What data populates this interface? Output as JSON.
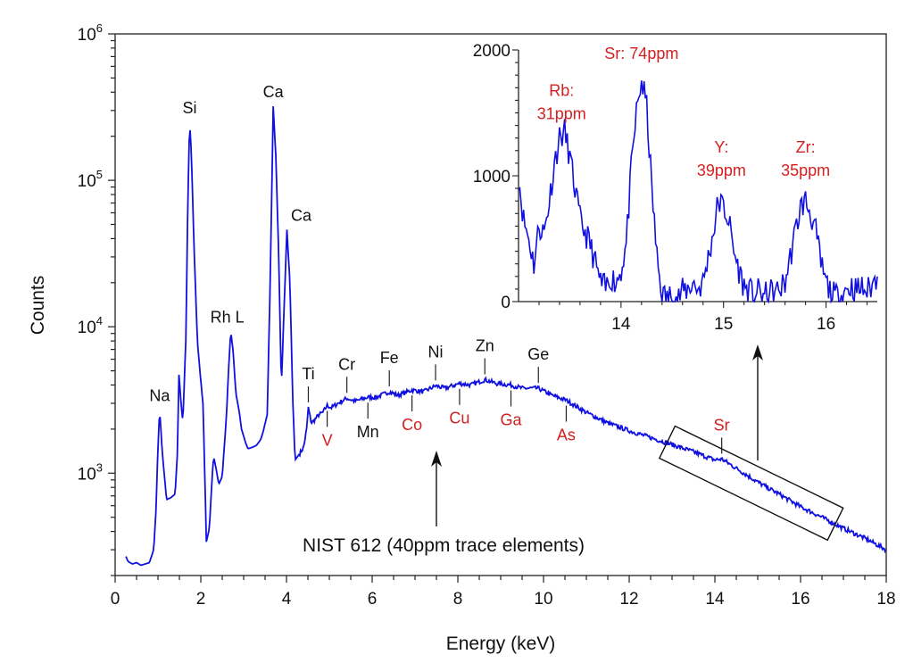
{
  "chart_data": [
    {
      "type": "line",
      "xlabel": "Energy (keV)",
      "ylabel": "Counts",
      "xlim": [
        0,
        18
      ],
      "ylim": [
        200,
        1000000
      ],
      "yscale": "log",
      "xticks": [
        0,
        2,
        4,
        6,
        8,
        10,
        12,
        14,
        16,
        18
      ],
      "yticks": [
        1000,
        10000,
        100000,
        1000000
      ],
      "line_color": "#1010e0",
      "annotation": "NIST 612 (40ppm trace elements)",
      "series": [
        {
          "x": [
            0.25,
            0.3,
            0.4,
            0.5,
            0.6,
            0.7,
            0.8,
            0.9,
            0.95,
            1.0,
            1.04,
            1.1,
            1.2,
            1.3,
            1.4,
            1.45,
            1.49,
            1.54,
            1.58,
            1.65,
            1.7,
            1.74,
            1.78,
            1.85,
            1.92,
            1.98,
            2.05,
            2.1,
            2.13,
            2.2,
            2.27,
            2.3,
            2.35,
            2.42,
            2.5,
            2.6,
            2.66,
            2.7,
            2.75,
            2.82,
            2.9,
            2.95,
            3.05,
            3.1,
            3.2,
            3.3,
            3.4,
            3.45,
            3.55,
            3.62,
            3.69,
            3.75,
            3.82,
            3.88,
            3.95,
            4.01,
            4.08,
            4.15,
            4.2,
            4.3,
            4.4,
            4.47,
            4.51,
            4.58,
            4.65,
            4.75,
            4.85,
            4.95,
            5.05,
            5.2,
            5.41,
            5.6,
            5.9,
            6.1,
            6.4,
            6.6,
            6.93,
            7.2,
            7.48,
            7.7,
            8.04,
            8.3,
            8.63,
            8.9,
            9.24,
            9.5,
            9.88,
            10.2,
            10.53,
            11,
            11.5,
            12,
            12.5,
            13,
            13.5,
            14,
            14.16,
            14.5,
            15,
            15.5,
            16,
            16.5,
            17,
            17.5,
            18
          ],
          "y": [
            270,
            250,
            240,
            245,
            235,
            240,
            245,
            300,
            530,
            1500,
            2700,
            1400,
            660,
            680,
            720,
            1300,
            4700,
            3000,
            2200,
            8000,
            80000,
            250000,
            150000,
            30000,
            8000,
            4950,
            3000,
            800,
            340,
            420,
            1000,
            1300,
            1100,
            840,
            950,
            2500,
            6000,
            9300,
            7000,
            3500,
            2600,
            2000,
            1600,
            1470,
            1500,
            1550,
            1700,
            1900,
            2500,
            20000,
            320000,
            150000,
            30000,
            3800,
            15000,
            46000,
            20000,
            3000,
            1230,
            1350,
            1500,
            2000,
            2800,
            2200,
            2300,
            2500,
            2600,
            2900,
            2800,
            3000,
            3250,
            3100,
            3300,
            3300,
            3600,
            3400,
            3700,
            3600,
            3950,
            3800,
            4100,
            4000,
            4350,
            4100,
            4000,
            3800,
            3800,
            3400,
            3150,
            2600,
            2200,
            1950,
            1750,
            1570,
            1400,
            1230,
            1250,
            1080,
            870,
            720,
            590,
            500,
            420,
            360,
            300
          ]
        }
      ],
      "peak_labels": [
        {
          "label": "Na",
          "energy": 1.04,
          "side": "above",
          "tick": false,
          "color": "#111111"
        },
        {
          "label": "Si",
          "energy": 1.74,
          "side": "above",
          "tick": false,
          "color": "#111111"
        },
        {
          "label": "Rh L",
          "energy": 2.7,
          "side": "above",
          "tick": false,
          "color": "#111111"
        },
        {
          "label": "Ca",
          "energy": 3.69,
          "side": "above",
          "tick": false,
          "color": "#111111"
        },
        {
          "label": "Ca",
          "energy": 4.01,
          "side": "above",
          "tick": false,
          "color": "#111111"
        },
        {
          "label": "Ti",
          "energy": 4.51,
          "side": "above",
          "tick": true,
          "color": "#111111"
        },
        {
          "label": "V",
          "energy": 4.95,
          "side": "below",
          "tick": true,
          "color": "#d42020"
        },
        {
          "label": "Cr",
          "energy": 5.41,
          "side": "above",
          "tick": true,
          "color": "#111111"
        },
        {
          "label": "Mn",
          "energy": 5.9,
          "side": "below",
          "tick": true,
          "color": "#111111"
        },
        {
          "label": "Fe",
          "energy": 6.4,
          "side": "above",
          "tick": true,
          "color": "#111111"
        },
        {
          "label": "Co",
          "energy": 6.93,
          "side": "below",
          "tick": true,
          "color": "#d42020"
        },
        {
          "label": "Ni",
          "energy": 7.48,
          "side": "above",
          "tick": true,
          "color": "#111111"
        },
        {
          "label": "Cu",
          "energy": 8.04,
          "side": "below",
          "tick": true,
          "color": "#d42020"
        },
        {
          "label": "Zn",
          "energy": 8.63,
          "side": "above",
          "tick": true,
          "color": "#111111"
        },
        {
          "label": "Ga",
          "energy": 9.24,
          "side": "below",
          "tick": true,
          "color": "#d42020"
        },
        {
          "label": "Ge",
          "energy": 9.88,
          "side": "above",
          "tick": true,
          "color": "#111111"
        },
        {
          "label": "As",
          "energy": 10.53,
          "side": "below",
          "tick": true,
          "color": "#d42020"
        },
        {
          "label": "Sr",
          "energy": 14.16,
          "side": "above",
          "tick": true,
          "color": "#d42020"
        }
      ],
      "zoom_box_energy_range": [
        13,
        16.7
      ]
    },
    {
      "type": "line",
      "xlabel": "",
      "ylabel": "",
      "xlim": [
        13,
        16.5
      ],
      "ylim": [
        0,
        2000
      ],
      "xticks": [
        14,
        15,
        16
      ],
      "yticks": [
        0,
        1000,
        2000
      ],
      "line_color": "#1010e0",
      "series": [
        {
          "x": [
            13.0,
            13.05,
            13.1,
            13.15,
            13.2,
            13.25,
            13.3,
            13.35,
            13.4,
            13.45,
            13.5,
            13.55,
            13.6,
            13.65,
            13.7,
            13.75,
            13.8,
            13.85,
            13.9,
            13.95,
            14.0,
            14.05,
            14.1,
            14.15,
            14.2,
            14.25,
            14.3,
            14.35,
            14.4,
            14.45,
            14.5,
            14.55,
            14.6,
            14.65,
            14.7,
            14.75,
            14.8,
            14.85,
            14.9,
            14.95,
            15.0,
            15.05,
            15.1,
            15.15,
            15.2,
            15.25,
            15.3,
            15.35,
            15.4,
            15.45,
            15.5,
            15.55,
            15.6,
            15.65,
            15.7,
            15.75,
            15.8,
            15.85,
            15.9,
            15.95,
            16.0,
            16.05,
            16.1,
            16.15,
            16.2,
            16.25,
            16.3,
            16.35,
            16.4,
            16.45,
            16.5
          ],
          "y": [
            1000,
            650,
            500,
            300,
            600,
            550,
            800,
            1100,
            1300,
            1350,
            1150,
            900,
            650,
            550,
            450,
            300,
            150,
            100,
            200,
            150,
            250,
            450,
            1050,
            1500,
            1750,
            1550,
            900,
            350,
            50,
            30,
            50,
            20,
            80,
            100,
            150,
            100,
            150,
            350,
            550,
            800,
            750,
            650,
            400,
            250,
            120,
            80,
            60,
            80,
            40,
            80,
            60,
            100,
            150,
            350,
            550,
            750,
            800,
            700,
            550,
            300,
            150,
            60,
            40,
            50,
            100,
            120,
            90,
            110,
            80,
            130,
            200
          ]
        }
      ],
      "peak_labels": [
        {
          "lines": [
            "Rb:",
            "31ppm"
          ],
          "energy": 13.42,
          "color": "#d42020"
        },
        {
          "lines": [
            "Sr: 74ppm"
          ],
          "energy": 14.2,
          "color": "#d42020"
        },
        {
          "lines": [
            "Y:",
            "39ppm"
          ],
          "energy": 14.98,
          "color": "#d42020"
        },
        {
          "lines": [
            "Zr:",
            "35ppm"
          ],
          "energy": 15.8,
          "color": "#d42020"
        }
      ]
    }
  ]
}
